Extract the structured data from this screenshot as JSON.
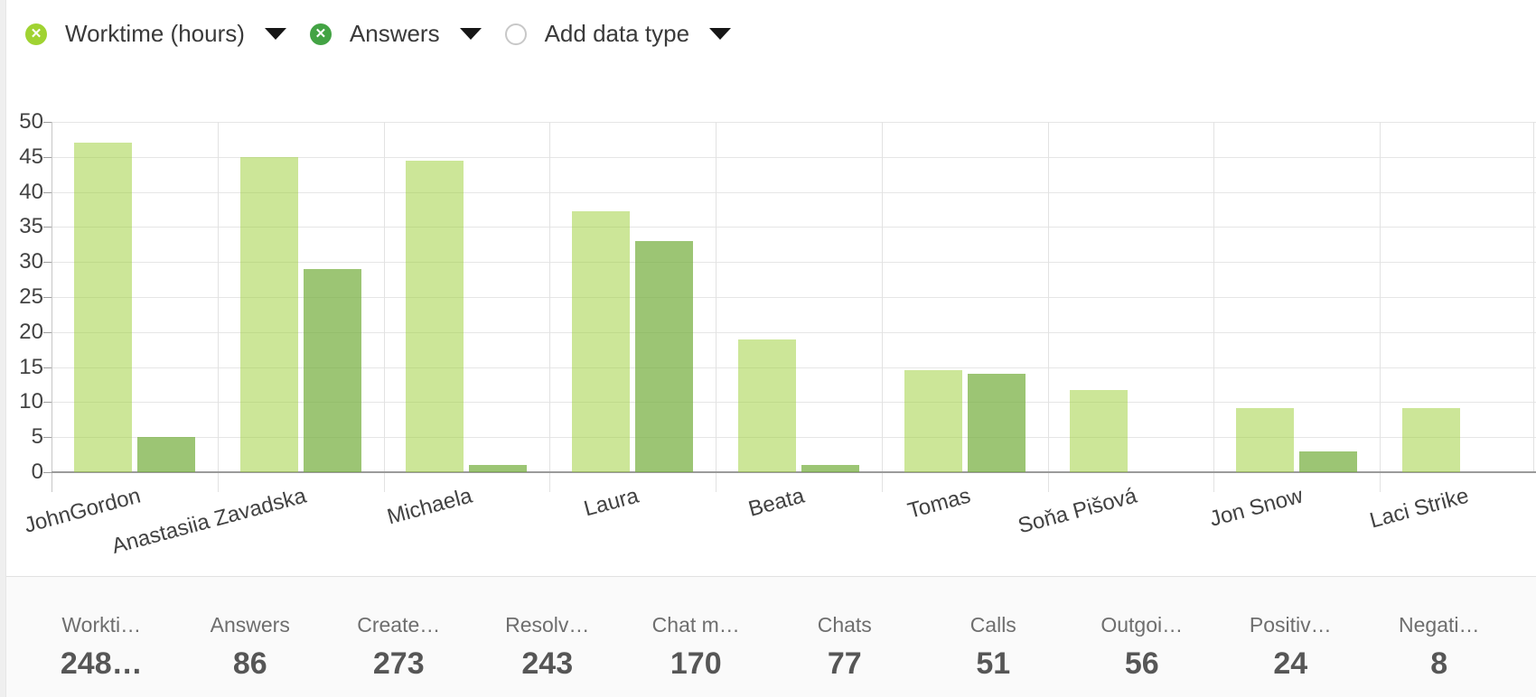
{
  "toolbar": {
    "chips": [
      {
        "label": "Worktime (hours)",
        "color": "#a0d332",
        "type": "series"
      },
      {
        "label": "Answers",
        "color": "#43a344",
        "type": "series"
      },
      {
        "label": "Add data type",
        "type": "add"
      }
    ]
  },
  "chart_data": {
    "type": "bar",
    "categories": [
      "JohnGordon",
      "Anastasiia Zavadska",
      "Michaela",
      "Laura",
      "Beata",
      "Tomas",
      "Soňa Pišová",
      "Jon Snow",
      "Laci Strike"
    ],
    "series": [
      {
        "name": "Worktime (hours)",
        "color": "rgba(154,205,50,0.5)",
        "legend_color": "#a0d332",
        "values": [
          47,
          45,
          44.5,
          37.3,
          19,
          14.5,
          11.7,
          9.2,
          9.2
        ]
      },
      {
        "name": "Answers",
        "color": "rgba(118,175,63,0.72)",
        "legend_color": "#43a344",
        "values": [
          5,
          29,
          1,
          33,
          1,
          14,
          0,
          3,
          0
        ]
      }
    ],
    "title": "",
    "xlabel": "",
    "ylabel": "",
    "ylim": [
      0,
      50
    ],
    "yticks": [
      0,
      5,
      10,
      15,
      20,
      25,
      30,
      35,
      40,
      45,
      50
    ],
    "grid": true,
    "legend_position": "top-left-chips",
    "xlabel_rotation_deg": -15
  },
  "summary": {
    "items": [
      {
        "label": "Workti…",
        "value": "248…"
      },
      {
        "label": "Answers",
        "value": "86"
      },
      {
        "label": "Create…",
        "value": "273"
      },
      {
        "label": "Resolv…",
        "value": "243"
      },
      {
        "label": "Chat m…",
        "value": "170"
      },
      {
        "label": "Chats",
        "value": "77"
      },
      {
        "label": "Calls",
        "value": "51"
      },
      {
        "label": "Outgoi…",
        "value": "56"
      },
      {
        "label": "Positiv…",
        "value": "24"
      },
      {
        "label": "Negati…",
        "value": "8"
      }
    ]
  }
}
